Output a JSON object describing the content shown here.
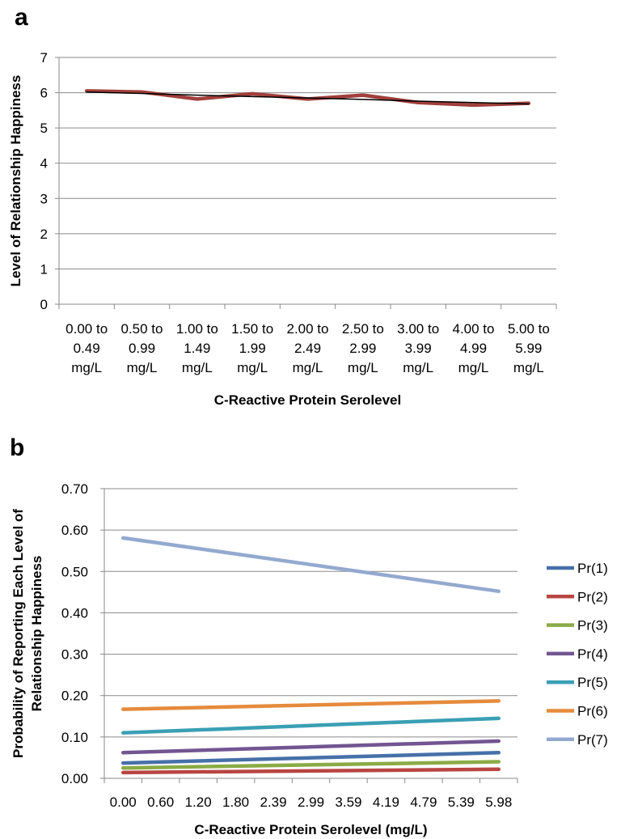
{
  "chart_data": [
    {
      "panel": "a",
      "type": "line",
      "categories": [
        [
          "0.00 to",
          "0.49",
          "mg/L"
        ],
        [
          "0.50 to",
          "0.99",
          "mg/L"
        ],
        [
          "1.00 to",
          "1.49",
          "mg/L"
        ],
        [
          "1.50 to",
          "1.99",
          "mg/L"
        ],
        [
          "2.00 to",
          "2.49",
          "mg/L"
        ],
        [
          "2.50 to",
          "2.99",
          "mg/L"
        ],
        [
          "3.00 to",
          "3.99",
          "mg/L"
        ],
        [
          "4.00 to",
          "4.99",
          "mg/L"
        ],
        [
          "5.00 to",
          "5.99",
          "mg/L"
        ]
      ],
      "series": [
        {
          "values": [
            6.05,
            6.02,
            5.82,
            5.97,
            5.82,
            5.93,
            5.72,
            5.65,
            5.7
          ],
          "color": "#a0403c"
        },
        {
          "values": [
            6.02,
            5.98,
            5.93,
            5.89,
            5.85,
            5.81,
            5.76,
            5.72,
            5.68
          ],
          "color": "#000000",
          "trendline": true
        }
      ],
      "ylabel": "Level of Relationship Happiness",
      "xlabel": "C-Reactive Protein Serolevel",
      "ylim": [
        0,
        7
      ],
      "yticks": [
        "0",
        "1",
        "2",
        "3",
        "4",
        "5",
        "6",
        "7"
      ],
      "grid": true
    },
    {
      "panel": "b",
      "type": "line",
      "x_tick_labels": [
        "0.00",
        "0.60",
        "1.20",
        "1.80",
        "2.39",
        "2.99",
        "3.59",
        "4.19",
        "4.79",
        "5.39",
        "5.98"
      ],
      "x_range": [
        0.0,
        5.98
      ],
      "series": [
        {
          "name": "Pr(1)",
          "color": "#4670a8",
          "values": [
            0.037,
            0.062
          ]
        },
        {
          "name": "Pr(2)",
          "color": "#b84542",
          "values": [
            0.014,
            0.022
          ]
        },
        {
          "name": "Pr(3)",
          "color": "#8aab45",
          "values": [
            0.025,
            0.04
          ]
        },
        {
          "name": "Pr(4)",
          "color": "#725591",
          "values": [
            0.062,
            0.09
          ]
        },
        {
          "name": "Pr(5)",
          "color": "#3a9fb4",
          "values": [
            0.11,
            0.145
          ]
        },
        {
          "name": "Pr(6)",
          "color": "#e58a3c",
          "values": [
            0.167,
            0.187
          ]
        },
        {
          "name": "Pr(7)",
          "color": "#93a9cf",
          "values": [
            0.581,
            0.452
          ]
        }
      ],
      "ylabel": [
        "Probability of Reporting Each Level of",
        "Relationship Happiness"
      ],
      "xlabel": "C-Reactive Protein Serolevel (mg/L)",
      "ylim": [
        0,
        0.7
      ],
      "yticks": [
        "0.00",
        "0.10",
        "0.20",
        "0.30",
        "0.40",
        "0.50",
        "0.60",
        "0.70"
      ],
      "grid": true,
      "legend": "right"
    }
  ]
}
